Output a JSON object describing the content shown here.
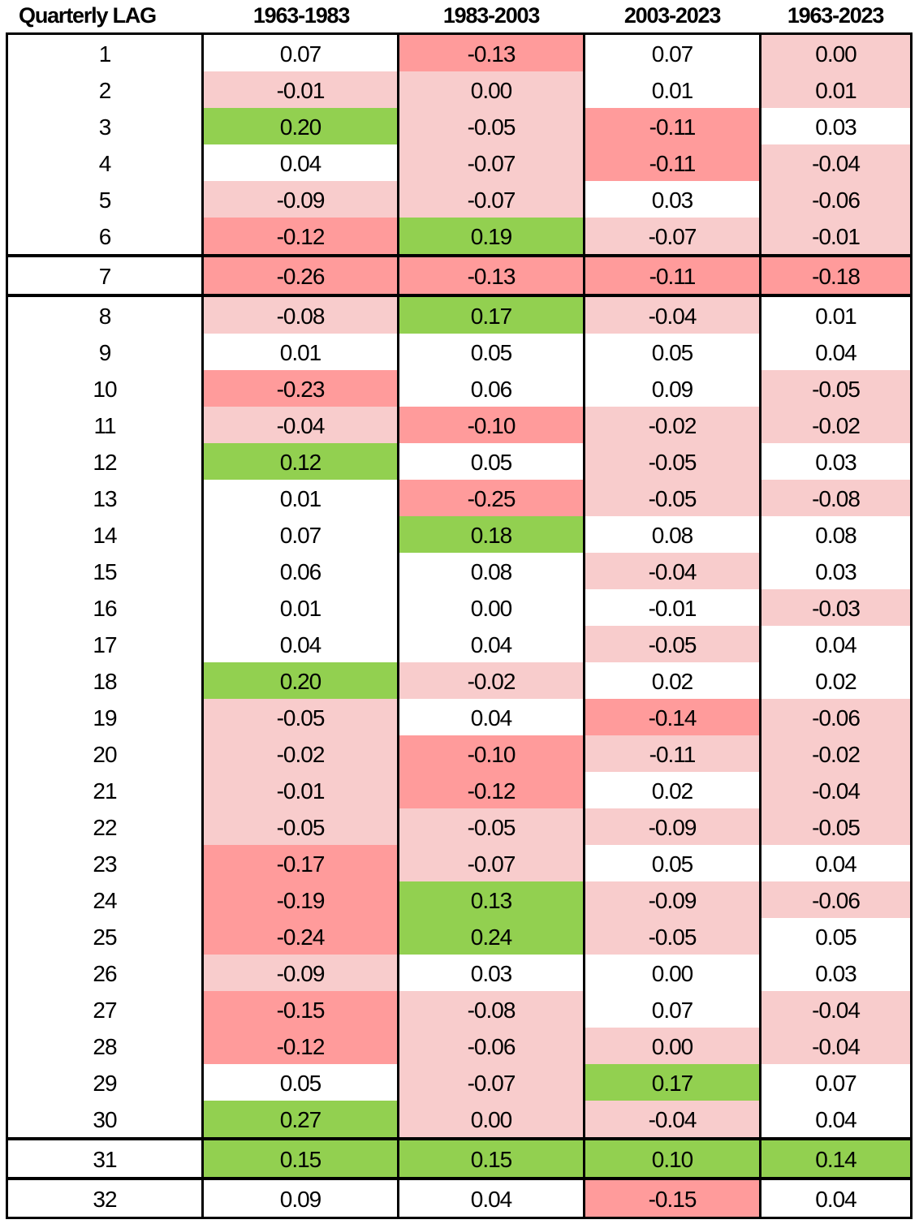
{
  "palette": {
    "W": "#ffffff",
    "L": "#f8cccc",
    "D": "#ff9b9b",
    "G": "#92d050"
  },
  "header": [
    "Quarterly LAG",
    "1963-1983",
    "1983-2003",
    "2003-2023",
    "1963-2023"
  ],
  "groups_start": [
    1,
    7,
    8,
    31,
    32
  ],
  "rows": [
    {
      "lag": "1",
      "values": [
        "0.07",
        "-0.13",
        "0.07",
        "0.00"
      ],
      "fills": [
        "W",
        "D",
        "W",
        "L"
      ]
    },
    {
      "lag": "2",
      "values": [
        "-0.01",
        "0.00",
        "0.01",
        "0.01"
      ],
      "fills": [
        "L",
        "L",
        "W",
        "L"
      ]
    },
    {
      "lag": "3",
      "values": [
        "0.20",
        "-0.05",
        "-0.11",
        "0.03"
      ],
      "fills": [
        "G",
        "L",
        "D",
        "W"
      ]
    },
    {
      "lag": "4",
      "values": [
        "0.04",
        "-0.07",
        "-0.11",
        "-0.04"
      ],
      "fills": [
        "W",
        "L",
        "D",
        "L"
      ]
    },
    {
      "lag": "5",
      "values": [
        "-0.09",
        "-0.07",
        "0.03",
        "-0.06"
      ],
      "fills": [
        "L",
        "L",
        "W",
        "L"
      ]
    },
    {
      "lag": "6",
      "values": [
        "-0.12",
        "0.19",
        "-0.07",
        "-0.01"
      ],
      "fills": [
        "D",
        "G",
        "L",
        "L"
      ]
    },
    {
      "lag": "7",
      "values": [
        "-0.26",
        "-0.13",
        "-0.11",
        "-0.18"
      ],
      "fills": [
        "D",
        "D",
        "D",
        "D"
      ]
    },
    {
      "lag": "8",
      "values": [
        "-0.08",
        "0.17",
        "-0.04",
        "0.01"
      ],
      "fills": [
        "L",
        "G",
        "L",
        "W"
      ]
    },
    {
      "lag": "9",
      "values": [
        "0.01",
        "0.05",
        "0.05",
        "0.04"
      ],
      "fills": [
        "W",
        "W",
        "W",
        "W"
      ]
    },
    {
      "lag": "10",
      "values": [
        "-0.23",
        "0.06",
        "0.09",
        "-0.05"
      ],
      "fills": [
        "D",
        "W",
        "W",
        "L"
      ]
    },
    {
      "lag": "11",
      "values": [
        "-0.04",
        "-0.10",
        "-0.02",
        "-0.02"
      ],
      "fills": [
        "L",
        "D",
        "L",
        "L"
      ]
    },
    {
      "lag": "12",
      "values": [
        "0.12",
        "0.05",
        "-0.05",
        "0.03"
      ],
      "fills": [
        "G",
        "W",
        "L",
        "W"
      ]
    },
    {
      "lag": "13",
      "values": [
        "0.01",
        "-0.25",
        "-0.05",
        "-0.08"
      ],
      "fills": [
        "W",
        "D",
        "L",
        "L"
      ]
    },
    {
      "lag": "14",
      "values": [
        "0.07",
        "0.18",
        "0.08",
        "0.08"
      ],
      "fills": [
        "W",
        "G",
        "W",
        "W"
      ]
    },
    {
      "lag": "15",
      "values": [
        "0.06",
        "0.08",
        "-0.04",
        "0.03"
      ],
      "fills": [
        "W",
        "W",
        "L",
        "W"
      ]
    },
    {
      "lag": "16",
      "values": [
        "0.01",
        "0.00",
        "-0.01",
        "-0.03"
      ],
      "fills": [
        "W",
        "W",
        "W",
        "L"
      ]
    },
    {
      "lag": "17",
      "values": [
        "0.04",
        "0.04",
        "-0.05",
        "0.04"
      ],
      "fills": [
        "W",
        "W",
        "L",
        "W"
      ]
    },
    {
      "lag": "18",
      "values": [
        "0.20",
        "-0.02",
        "0.02",
        "0.02"
      ],
      "fills": [
        "G",
        "L",
        "W",
        "W"
      ]
    },
    {
      "lag": "19",
      "values": [
        "-0.05",
        "0.04",
        "-0.14",
        "-0.06"
      ],
      "fills": [
        "L",
        "W",
        "D",
        "L"
      ]
    },
    {
      "lag": "20",
      "values": [
        "-0.02",
        "-0.10",
        "-0.11",
        "-0.02"
      ],
      "fills": [
        "L",
        "D",
        "L",
        "L"
      ]
    },
    {
      "lag": "21",
      "values": [
        "-0.01",
        "-0.12",
        "0.02",
        "-0.04"
      ],
      "fills": [
        "L",
        "D",
        "W",
        "L"
      ]
    },
    {
      "lag": "22",
      "values": [
        "-0.05",
        "-0.05",
        "-0.09",
        "-0.05"
      ],
      "fills": [
        "L",
        "L",
        "L",
        "L"
      ]
    },
    {
      "lag": "23",
      "values": [
        "-0.17",
        "-0.07",
        "0.05",
        "0.04"
      ],
      "fills": [
        "D",
        "L",
        "W",
        "W"
      ]
    },
    {
      "lag": "24",
      "values": [
        "-0.19",
        "0.13",
        "-0.09",
        "-0.06"
      ],
      "fills": [
        "D",
        "G",
        "L",
        "L"
      ]
    },
    {
      "lag": "25",
      "values": [
        "-0.24",
        "0.24",
        "-0.05",
        "0.05"
      ],
      "fills": [
        "D",
        "G",
        "L",
        "W"
      ]
    },
    {
      "lag": "26",
      "values": [
        "-0.09",
        "0.03",
        "0.00",
        "0.03"
      ],
      "fills": [
        "L",
        "W",
        "W",
        "W"
      ]
    },
    {
      "lag": "27",
      "values": [
        "-0.15",
        "-0.08",
        "0.07",
        "-0.04"
      ],
      "fills": [
        "D",
        "L",
        "W",
        "L"
      ]
    },
    {
      "lag": "28",
      "values": [
        "-0.12",
        "-0.06",
        "0.00",
        "-0.04"
      ],
      "fills": [
        "D",
        "L",
        "L",
        "L"
      ]
    },
    {
      "lag": "29",
      "values": [
        "0.05",
        "-0.07",
        "0.17",
        "0.07"
      ],
      "fills": [
        "W",
        "L",
        "G",
        "W"
      ]
    },
    {
      "lag": "30",
      "values": [
        "0.27",
        "0.00",
        "-0.04",
        "0.04"
      ],
      "fills": [
        "G",
        "L",
        "L",
        "W"
      ]
    },
    {
      "lag": "31",
      "values": [
        "0.15",
        "0.15",
        "0.10",
        "0.14"
      ],
      "fills": [
        "G",
        "G",
        "G",
        "G"
      ]
    },
    {
      "lag": "32",
      "values": [
        "0.09",
        "0.04",
        "-0.15",
        "0.04"
      ],
      "fills": [
        "W",
        "W",
        "D",
        "W"
      ]
    }
  ]
}
